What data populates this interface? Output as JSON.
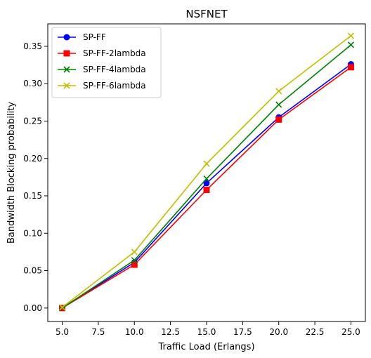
{
  "chart_data": {
    "type": "line",
    "title": "NSFNET",
    "xlabel": "Traffic Load (Erlangs)",
    "ylabel": "Bandwidth Blocking probability",
    "x": [
      5.0,
      10.0,
      15.0,
      20.0,
      25.0
    ],
    "xlim": [
      4.0,
      26.0
    ],
    "ylim": [
      -0.018,
      0.38
    ],
    "xticks": [
      "5.0",
      "7.5",
      "10.0",
      "12.5",
      "15.0",
      "17.5",
      "20.0",
      "22.5",
      "25.0"
    ],
    "xtick_values": [
      5.0,
      7.5,
      10.0,
      12.5,
      15.0,
      17.5,
      20.0,
      22.5,
      25.0
    ],
    "yticks": [
      "0.00",
      "0.05",
      "0.10",
      "0.15",
      "0.20",
      "0.25",
      "0.30",
      "0.35"
    ],
    "ytick_values": [
      0.0,
      0.05,
      0.1,
      0.15,
      0.2,
      0.25,
      0.3,
      0.35
    ],
    "grid": false,
    "legend_position": "top-left",
    "series": [
      {
        "name": "SP-FF",
        "color": "#0000ff",
        "marker": "circle",
        "values": [
          0.0,
          0.061,
          0.167,
          0.255,
          0.326
        ]
      },
      {
        "name": "SP-FF-2lambda",
        "color": "#ff0000",
        "marker": "square",
        "values": [
          0.0,
          0.058,
          0.158,
          0.252,
          0.322
        ]
      },
      {
        "name": "SP-FF-4lambda",
        "color": "#008000",
        "marker": "x",
        "values": [
          0.0,
          0.064,
          0.173,
          0.272,
          0.352
        ]
      },
      {
        "name": "SP-FF-6lambda",
        "color": "#bfbf00",
        "marker": "x",
        "values": [
          0.001,
          0.075,
          0.193,
          0.29,
          0.364
        ]
      }
    ]
  }
}
